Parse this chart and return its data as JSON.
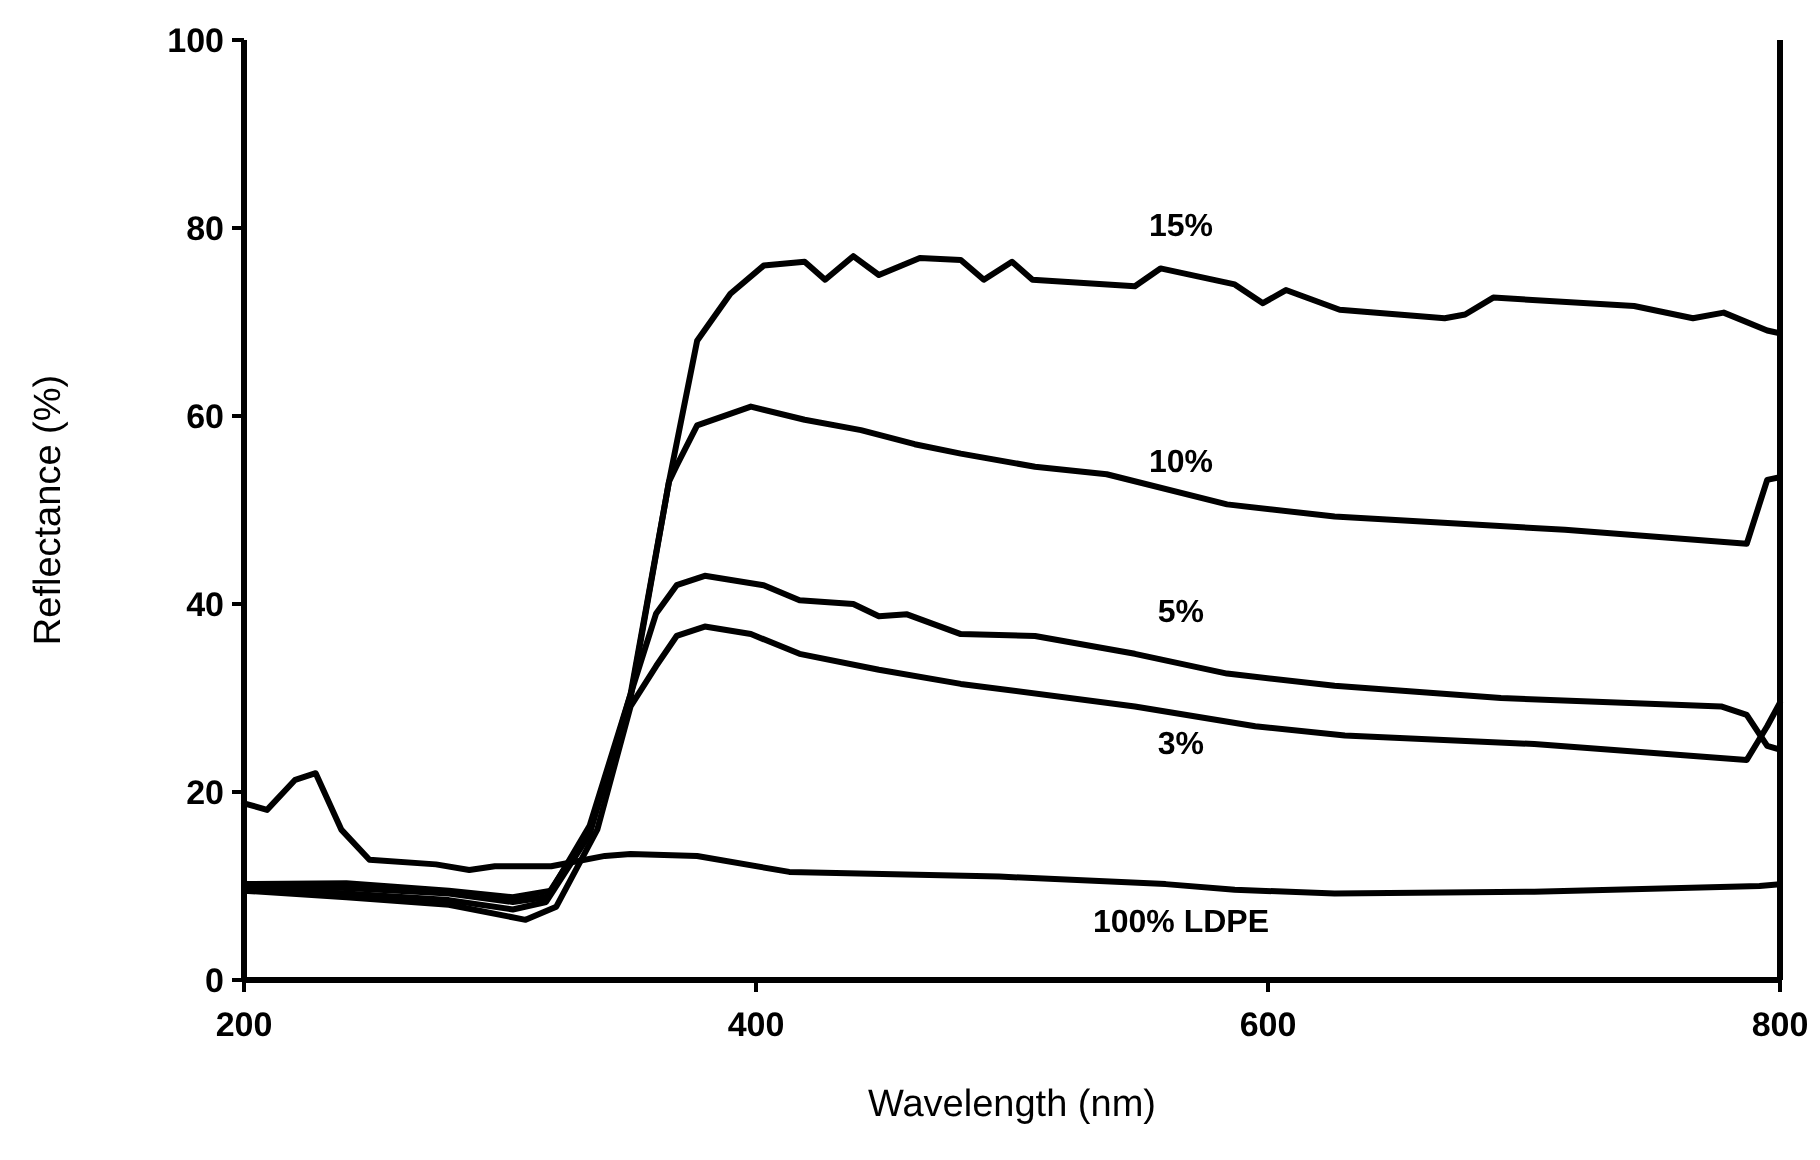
{
  "chart_data": {
    "type": "line",
    "xlabel": "Wavelength (nm)",
    "ylabel": "Reflectance (%)",
    "xlim": [
      200,
      800
    ],
    "xticks": [
      200,
      400,
      600,
      800
    ],
    "ylim": [
      0,
      100
    ],
    "yticks": [
      0,
      20,
      40,
      60,
      80,
      100
    ],
    "grid": false,
    "legend": false,
    "marker": "none",
    "line_style": "solid",
    "series": [
      {
        "name": "15%",
        "color": "#000000",
        "x": [
          200,
          240,
          280,
          305,
          320,
          335,
          351,
          366,
          377,
          390,
          403,
          419,
          427,
          438,
          448,
          464,
          480,
          489,
          500,
          508,
          548,
          558,
          587,
          598,
          607,
          628,
          669,
          677,
          688,
          743,
          766,
          778,
          795,
          800
        ],
        "values": [
          10.2,
          10.3,
          9.5,
          8.8,
          9.5,
          16.4,
          30.4,
          53,
          68,
          73,
          76,
          76.4,
          74.5,
          77,
          75,
          76.8,
          76.6,
          74.5,
          76.4,
          74.5,
          73.8,
          75.7,
          74,
          72,
          73.4,
          71.3,
          70.4,
          70.8,
          72.6,
          71.7,
          70.4,
          71,
          69.1,
          68.8
        ]
      },
      {
        "name": "10%",
        "color": "#000000",
        "x": [
          200,
          240,
          280,
          305,
          318,
          335,
          351,
          366,
          369,
          377,
          398,
          419,
          441,
          462,
          480,
          509,
          537,
          584,
          626,
          677,
          716,
          787,
          795,
          800
        ],
        "values": [
          10,
          9.8,
          9.2,
          8.3,
          8.8,
          16,
          30,
          53,
          54.7,
          59,
          61,
          59.6,
          58.5,
          57,
          56,
          54.6,
          53.8,
          50.6,
          49.3,
          48.5,
          47.9,
          46.4,
          53.2,
          53.5
        ]
      },
      {
        "name": "5%",
        "color": "#000000",
        "x": [
          200,
          240,
          280,
          305,
          318,
          335,
          351,
          361,
          369,
          380,
          403,
          417,
          438,
          448,
          459,
          480,
          509,
          548,
          584,
          626,
          691,
          777,
          787,
          795,
          800
        ],
        "values": [
          9.8,
          9.2,
          8.5,
          7.5,
          8.3,
          15.5,
          30.4,
          39,
          42,
          43,
          42,
          40.4,
          40,
          38.7,
          38.9,
          36.8,
          36.6,
          34.7,
          32.6,
          31.3,
          30,
          29.1,
          28.2,
          24.9,
          24.5
        ]
      },
      {
        "name": "3%",
        "color": "#000000",
        "x": [
          200,
          240,
          280,
          310,
          322,
          338,
          351,
          361,
          369,
          380,
          398,
          417,
          448,
          480,
          548,
          595,
          630,
          704,
          787,
          795,
          800
        ],
        "values": [
          9.5,
          8.8,
          8,
          6.4,
          7.8,
          16,
          29.1,
          33.4,
          36.6,
          37.6,
          36.8,
          34.7,
          33,
          31.5,
          29.1,
          27,
          26,
          25.1,
          23.4,
          27,
          29.5
        ]
      },
      {
        "name": "100% LDPE",
        "color": "#000000",
        "x": [
          200,
          209,
          220,
          228,
          238,
          249,
          275,
          288,
          298,
          320,
          341,
          351,
          377,
          413,
          495,
          560,
          587,
          626,
          704,
          792,
          800
        ],
        "values": [
          18.8,
          18.1,
          21.3,
          22,
          16,
          12.8,
          12.3,
          11.7,
          12.1,
          12.1,
          13.2,
          13.4,
          13.2,
          11.5,
          11,
          10.2,
          9.6,
          9.2,
          9.4,
          10,
          10.2
        ]
      }
    ]
  }
}
